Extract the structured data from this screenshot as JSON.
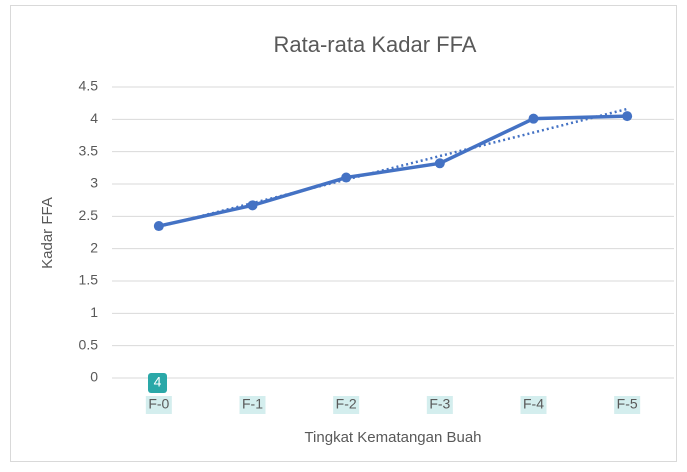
{
  "chart_data": {
    "type": "line",
    "title": "Rata-rata Kadar FFA",
    "x_label": "Tingkat Kematangan Buah",
    "y_label": "Kadar FFA",
    "categories": [
      "F-0",
      "F-1",
      "F-2",
      "F-3",
      "F-4",
      "F-5"
    ],
    "series": [
      {
        "name": "Kadar FFA",
        "color": "#4472c4",
        "values": [
          2.35,
          2.67,
          3.1,
          3.32,
          4.01,
          4.05
        ]
      }
    ],
    "trendline": "linear",
    "ylim": [
      0,
      4.5
    ],
    "yticks": [
      0,
      0.5,
      1,
      1.5,
      2,
      2.5,
      3,
      3.5,
      4,
      4.5
    ],
    "grid": true,
    "annotation": "4"
  }
}
